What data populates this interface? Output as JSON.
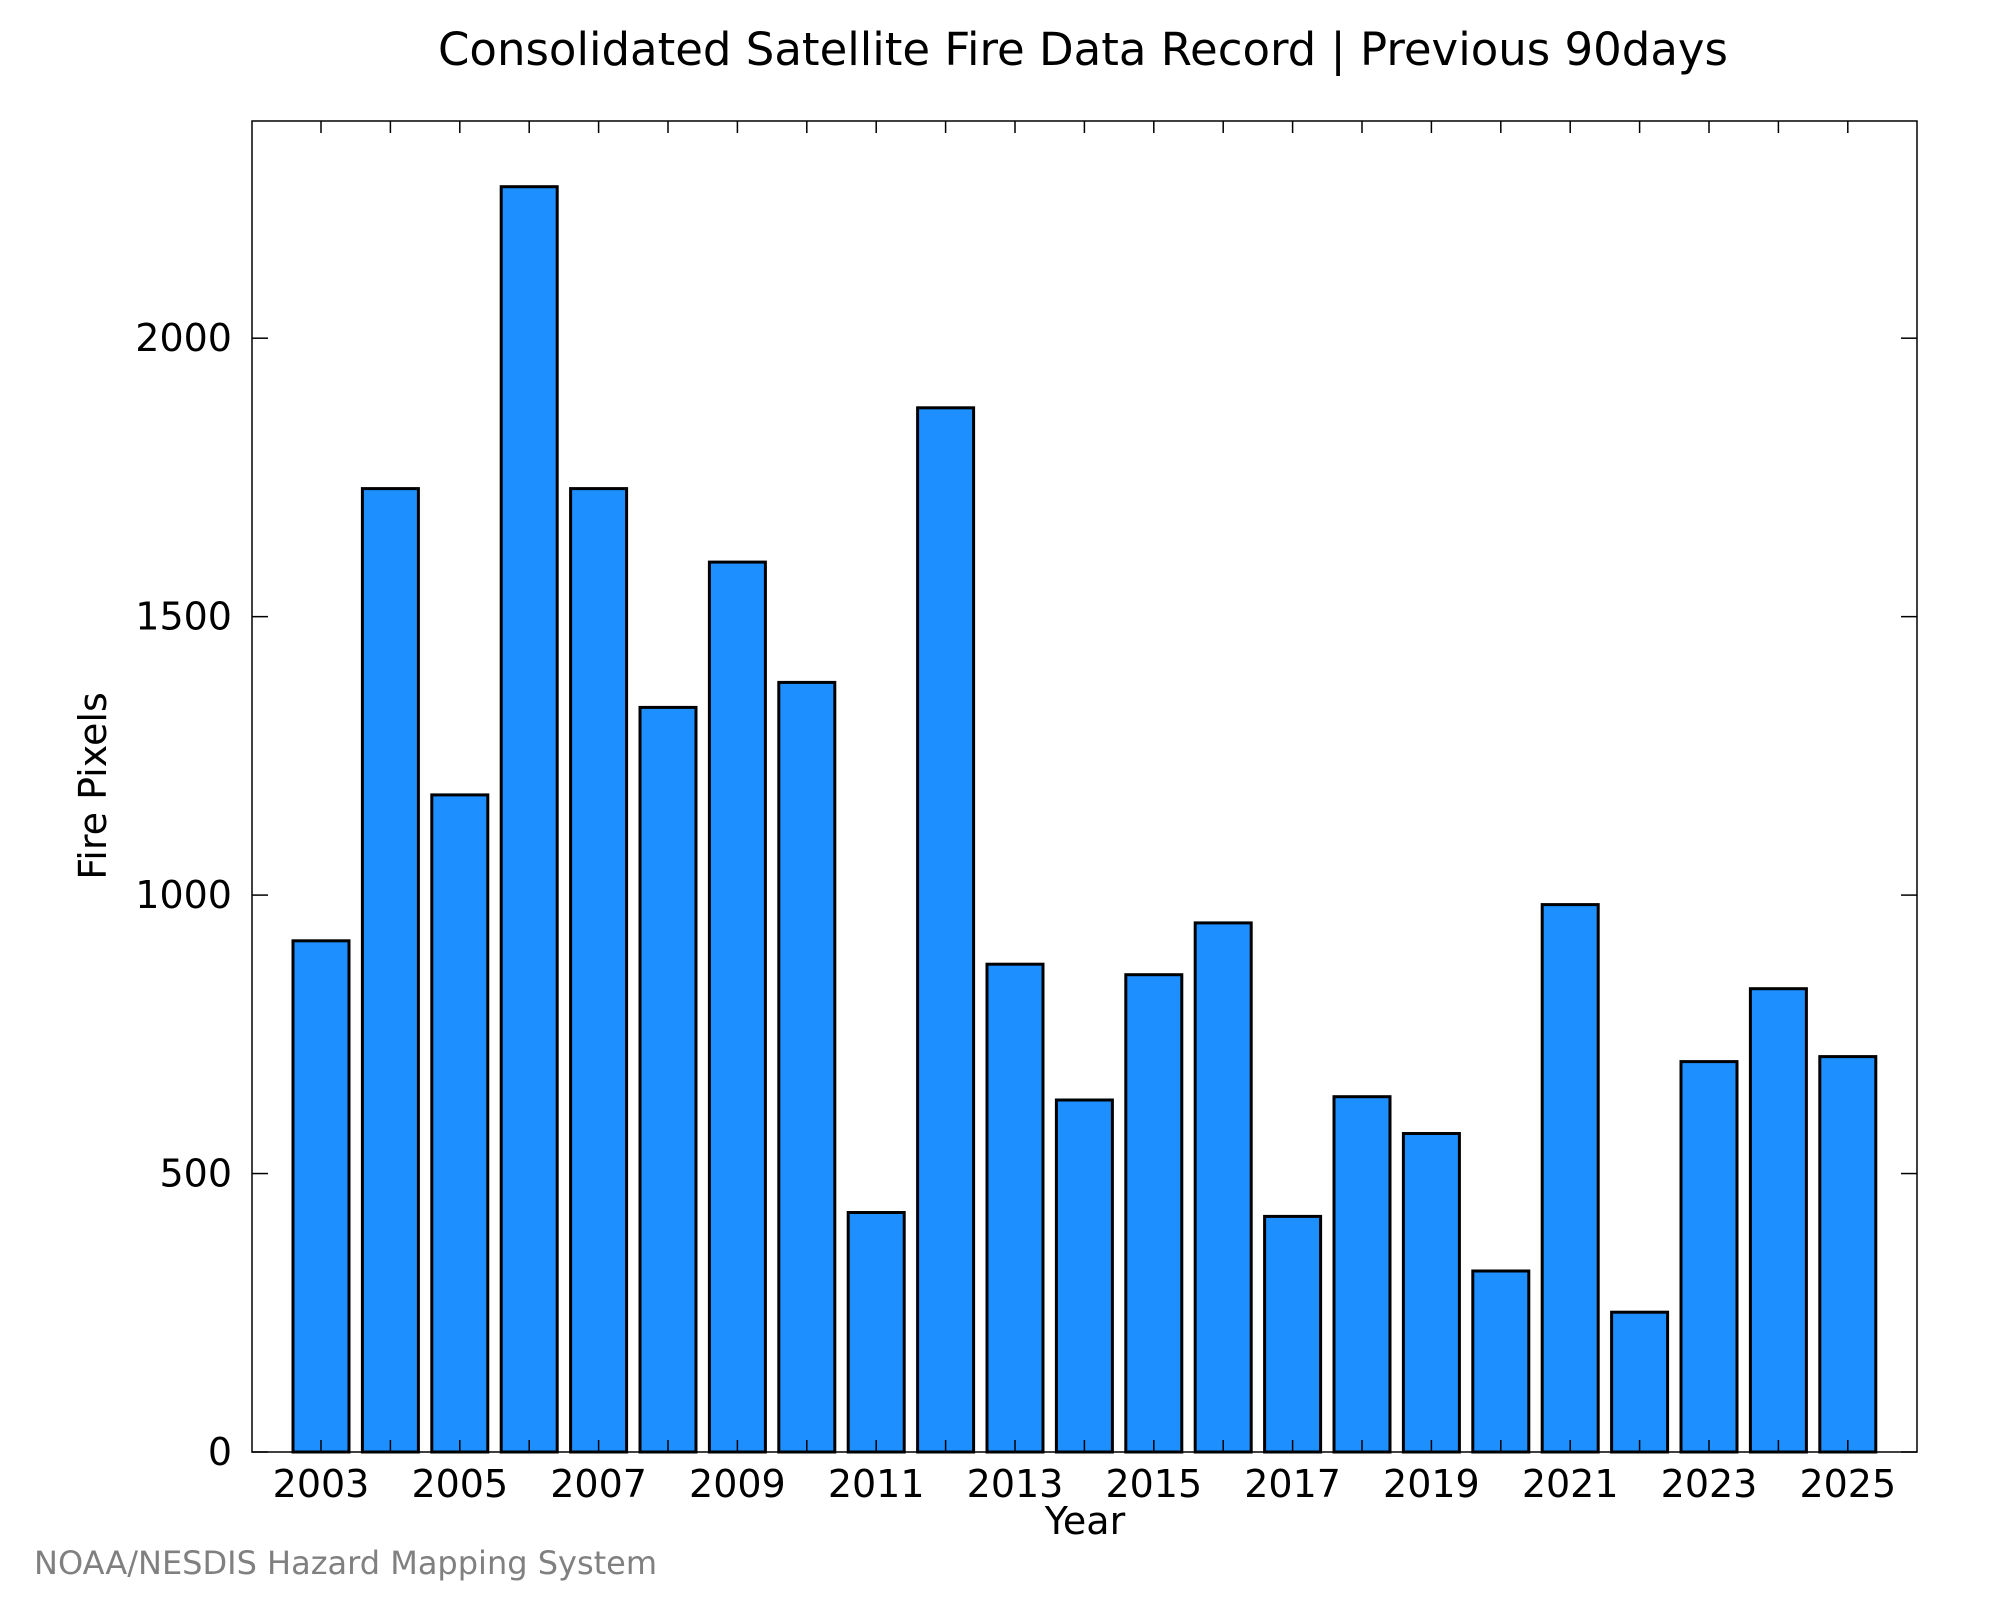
{
  "chart_data": {
    "type": "bar",
    "title": "Consolidated Satellite Fire Data Record | Previous 90days",
    "xlabel": "Year",
    "ylabel": "Fire Pixels",
    "categories": [
      "2003",
      "2004",
      "2005",
      "2006",
      "2007",
      "2008",
      "2009",
      "2010",
      "2011",
      "2012",
      "2013",
      "2014",
      "2015",
      "2016",
      "2017",
      "2018",
      "2019",
      "2020",
      "2021",
      "2022",
      "2023",
      "2024",
      "2025"
    ],
    "values": [
      918,
      1730,
      1180,
      2272,
      1730,
      1337,
      1598,
      1382,
      430,
      1875,
      876,
      632,
      857,
      950,
      423,
      638,
      572,
      325,
      983,
      251,
      701,
      832,
      710
    ],
    "x_tick_labels": [
      "2003",
      "2005",
      "2007",
      "2009",
      "2011",
      "2013",
      "2015",
      "2017",
      "2019",
      "2021",
      "2023",
      "2025"
    ],
    "y_ticks": [
      0,
      500,
      1000,
      1500,
      2000
    ],
    "ylim": [
      0,
      2390
    ],
    "grid": false,
    "bar_color": "#1e8fff",
    "edge_color": "#000000"
  },
  "credit": "NOAA/NESDIS Hazard Mapping System"
}
